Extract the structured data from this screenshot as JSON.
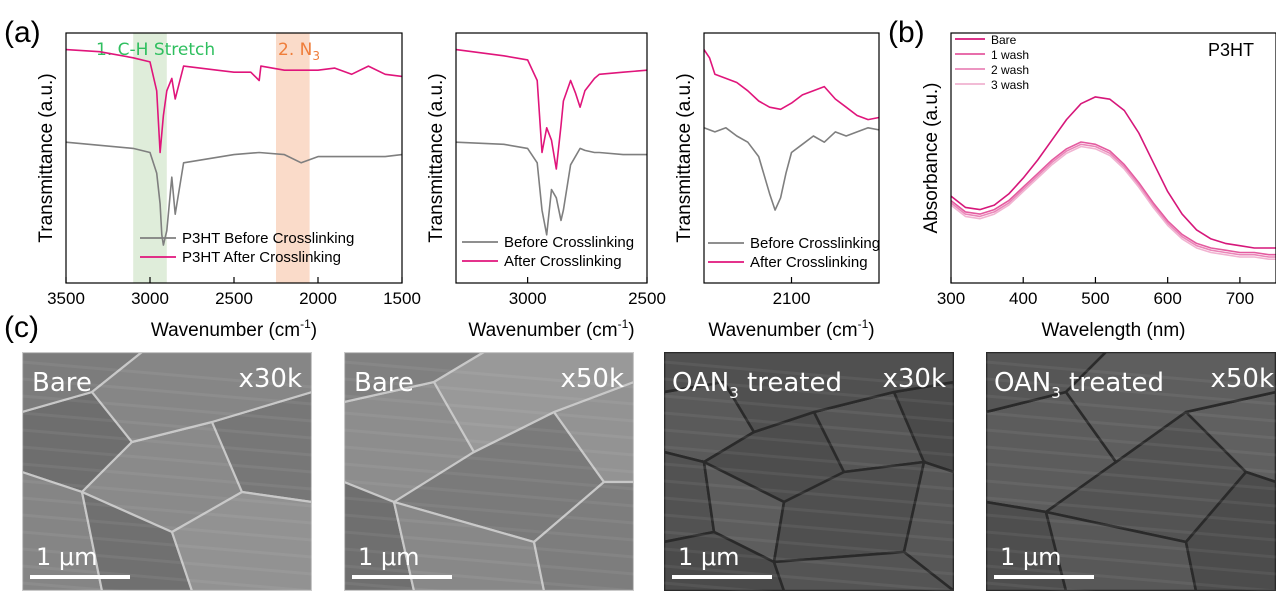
{
  "panel_labels": {
    "a": "(a)",
    "b": "(b)",
    "c": "(c)"
  },
  "colors": {
    "before": "#7f7f7f",
    "after": "#e0157b",
    "ch_band": "#d9ead3",
    "n3_band": "#f9d5c0",
    "ch_text": "#2fbf5f",
    "n3_text": "#ef7d3a",
    "bare": "#d6177a",
    "wash1": "#e45a9f",
    "wash2": "#ea86b8",
    "wash3": "#f1b3d1"
  },
  "chart_data": [
    {
      "type": "line",
      "ylabel": "Transmittance (a.u.)",
      "xlabel": "Wavenumber (cm",
      "xlabel_sup": "-1",
      "xlabel_end": ")",
      "xlim": [
        3500,
        1500
      ],
      "xticks": [
        "3500",
        "3000",
        "2500",
        "2000",
        "1500"
      ],
      "annotations": [
        {
          "num": "1. C-H Stretch",
          "sub": ""
        },
        {
          "num": "2. N",
          "sub": "3"
        }
      ],
      "bands": [
        [
          3100,
          2900
        ],
        [
          2250,
          2050
        ]
      ],
      "series": [
        {
          "name": "P3HT Before Crosslinking",
          "x": [
            3500,
            3100,
            3000,
            2960,
            2940,
            2930,
            2920,
            2900,
            2870,
            2850,
            2800,
            2500,
            2350,
            2200,
            2100,
            2000,
            1800,
            1600,
            1500
          ],
          "y": [
            0.55,
            0.52,
            0.5,
            0.4,
            0.25,
            0.1,
            0.05,
            0.12,
            0.38,
            0.2,
            0.45,
            0.49,
            0.5,
            0.49,
            0.45,
            0.48,
            0.48,
            0.48,
            0.49
          ]
        },
        {
          "name": "P3HT After Crosslinking",
          "x": [
            3500,
            3300,
            3100,
            3000,
            2960,
            2940,
            2920,
            2900,
            2870,
            2850,
            2800,
            2600,
            2500,
            2400,
            2350,
            2340,
            2200,
            2100,
            2000,
            1900,
            1800,
            1700,
            1600,
            1500
          ],
          "y": [
            1.0,
            0.99,
            0.96,
            0.94,
            0.8,
            0.5,
            0.68,
            0.8,
            0.86,
            0.76,
            0.92,
            0.9,
            0.89,
            0.89,
            0.85,
            0.92,
            0.9,
            0.9,
            0.9,
            0.91,
            0.88,
            0.92,
            0.88,
            0.87
          ]
        }
      ],
      "legend_position": "bottom-right"
    },
    {
      "type": "line",
      "ylabel": "Transmittance (a.u.)",
      "xlabel": "Wavenumber (cm",
      "xlabel_sup": "-1",
      "xlabel_end": ")",
      "xlim": [
        3300,
        2500
      ],
      "xticks": [
        "3000",
        "2500"
      ],
      "series": [
        {
          "name": "Before Crosslinking",
          "x": [
            3300,
            3100,
            3000,
            2960,
            2940,
            2920,
            2900,
            2880,
            2860,
            2850,
            2820,
            2780,
            2760,
            2720,
            2700,
            2600,
            2500
          ],
          "y": [
            0.55,
            0.54,
            0.52,
            0.45,
            0.22,
            0.1,
            0.32,
            0.28,
            0.17,
            0.22,
            0.44,
            0.52,
            0.51,
            0.5,
            0.5,
            0.49,
            0.49
          ]
        },
        {
          "name": "After Crosslinking",
          "x": [
            3300,
            3100,
            3000,
            2960,
            2940,
            2920,
            2900,
            2880,
            2860,
            2850,
            2820,
            2800,
            2780,
            2760,
            2720,
            2700,
            2600,
            2500
          ],
          "y": [
            1.0,
            0.97,
            0.95,
            0.85,
            0.5,
            0.62,
            0.56,
            0.42,
            0.63,
            0.75,
            0.85,
            0.79,
            0.72,
            0.8,
            0.86,
            0.88,
            0.89,
            0.9
          ]
        }
      ],
      "legend_position": "bottom-right"
    },
    {
      "type": "line",
      "ylabel": "Transmittance (a.u.)",
      "xlabel": "Wavenumber (cm",
      "xlabel_sup": "-1",
      "xlabel_end": ")",
      "xlim": [
        2180,
        2020
      ],
      "xticks": [
        "2100"
      ],
      "series": [
        {
          "name": "Before Crosslinking",
          "x": [
            2180,
            2170,
            2160,
            2150,
            2140,
            2130,
            2120,
            2115,
            2110,
            2105,
            2100,
            2090,
            2080,
            2070,
            2060,
            2050,
            2040,
            2030,
            2020
          ],
          "y": [
            0.62,
            0.6,
            0.62,
            0.58,
            0.55,
            0.48,
            0.3,
            0.22,
            0.28,
            0.4,
            0.5,
            0.54,
            0.58,
            0.55,
            0.6,
            0.58,
            0.6,
            0.62,
            0.61
          ]
        },
        {
          "name": "After Crosslinking",
          "x": [
            2180,
            2175,
            2170,
            2160,
            2150,
            2140,
            2130,
            2120,
            2110,
            2100,
            2090,
            2080,
            2070,
            2060,
            2050,
            2040,
            2030,
            2020
          ],
          "y": [
            1.0,
            0.96,
            0.88,
            0.86,
            0.84,
            0.8,
            0.75,
            0.72,
            0.71,
            0.74,
            0.78,
            0.8,
            0.82,
            0.76,
            0.72,
            0.68,
            0.66,
            0.67
          ]
        }
      ],
      "legend_position": "bottom-right"
    },
    {
      "type": "line",
      "ylabel": "Absorbance (a.u.)",
      "xlabel": "Wavelength (nm)",
      "xlim": [
        300,
        750
      ],
      "xticks": [
        "300",
        "400",
        "500",
        "600",
        "700"
      ],
      "title": "P3HT",
      "series": [
        {
          "name": "Bare",
          "x": [
            300,
            320,
            340,
            360,
            380,
            400,
            420,
            440,
            460,
            480,
            500,
            520,
            540,
            560,
            580,
            600,
            620,
            640,
            660,
            680,
            700,
            720,
            740,
            750
          ],
          "y": [
            0.35,
            0.3,
            0.29,
            0.31,
            0.36,
            0.43,
            0.51,
            0.6,
            0.69,
            0.76,
            0.79,
            0.78,
            0.73,
            0.63,
            0.5,
            0.37,
            0.27,
            0.2,
            0.16,
            0.14,
            0.13,
            0.12,
            0.12,
            0.12
          ]
        },
        {
          "name": "1 wash",
          "x": [
            300,
            320,
            340,
            360,
            380,
            400,
            420,
            440,
            460,
            480,
            500,
            520,
            540,
            560,
            580,
            600,
            620,
            640,
            660,
            680,
            700,
            720,
            740,
            750
          ],
          "y": [
            0.33,
            0.28,
            0.27,
            0.29,
            0.33,
            0.39,
            0.45,
            0.51,
            0.56,
            0.59,
            0.58,
            0.55,
            0.49,
            0.41,
            0.32,
            0.24,
            0.18,
            0.14,
            0.12,
            0.11,
            0.1,
            0.1,
            0.09,
            0.09
          ]
        },
        {
          "name": "2 wash",
          "x": [
            300,
            320,
            340,
            360,
            380,
            400,
            420,
            440,
            460,
            480,
            500,
            520,
            540,
            560,
            580,
            600,
            620,
            640,
            660,
            680,
            700,
            720,
            740,
            750
          ],
          "y": [
            0.32,
            0.27,
            0.26,
            0.28,
            0.32,
            0.38,
            0.44,
            0.5,
            0.55,
            0.58,
            0.57,
            0.54,
            0.48,
            0.4,
            0.31,
            0.23,
            0.17,
            0.13,
            0.11,
            0.1,
            0.09,
            0.09,
            0.08,
            0.08
          ]
        },
        {
          "name": "3 wash",
          "x": [
            300,
            320,
            340,
            360,
            380,
            400,
            420,
            440,
            460,
            480,
            500,
            520,
            540,
            560,
            580,
            600,
            620,
            640,
            660,
            680,
            700,
            720,
            740,
            750
          ],
          "y": [
            0.31,
            0.26,
            0.25,
            0.27,
            0.31,
            0.37,
            0.43,
            0.49,
            0.54,
            0.57,
            0.56,
            0.53,
            0.47,
            0.39,
            0.3,
            0.22,
            0.16,
            0.12,
            0.1,
            0.09,
            0.08,
            0.08,
            0.07,
            0.07
          ]
        }
      ],
      "legend_position": "top-left"
    }
  ],
  "sem_images": [
    {
      "name": "Bare",
      "sub": "",
      "mag": "x30k",
      "scale": "1 μm"
    },
    {
      "name": "Bare",
      "sub": "",
      "mag": "x50k",
      "scale": "1 μm"
    },
    {
      "name": "OAN",
      "sub": "3",
      "suffix": " treated",
      "mag": "x30k",
      "scale": "1 μm"
    },
    {
      "name": "OAN",
      "sub": "3",
      "suffix": " treated",
      "mag": "x50k",
      "scale": "1 μm"
    }
  ]
}
